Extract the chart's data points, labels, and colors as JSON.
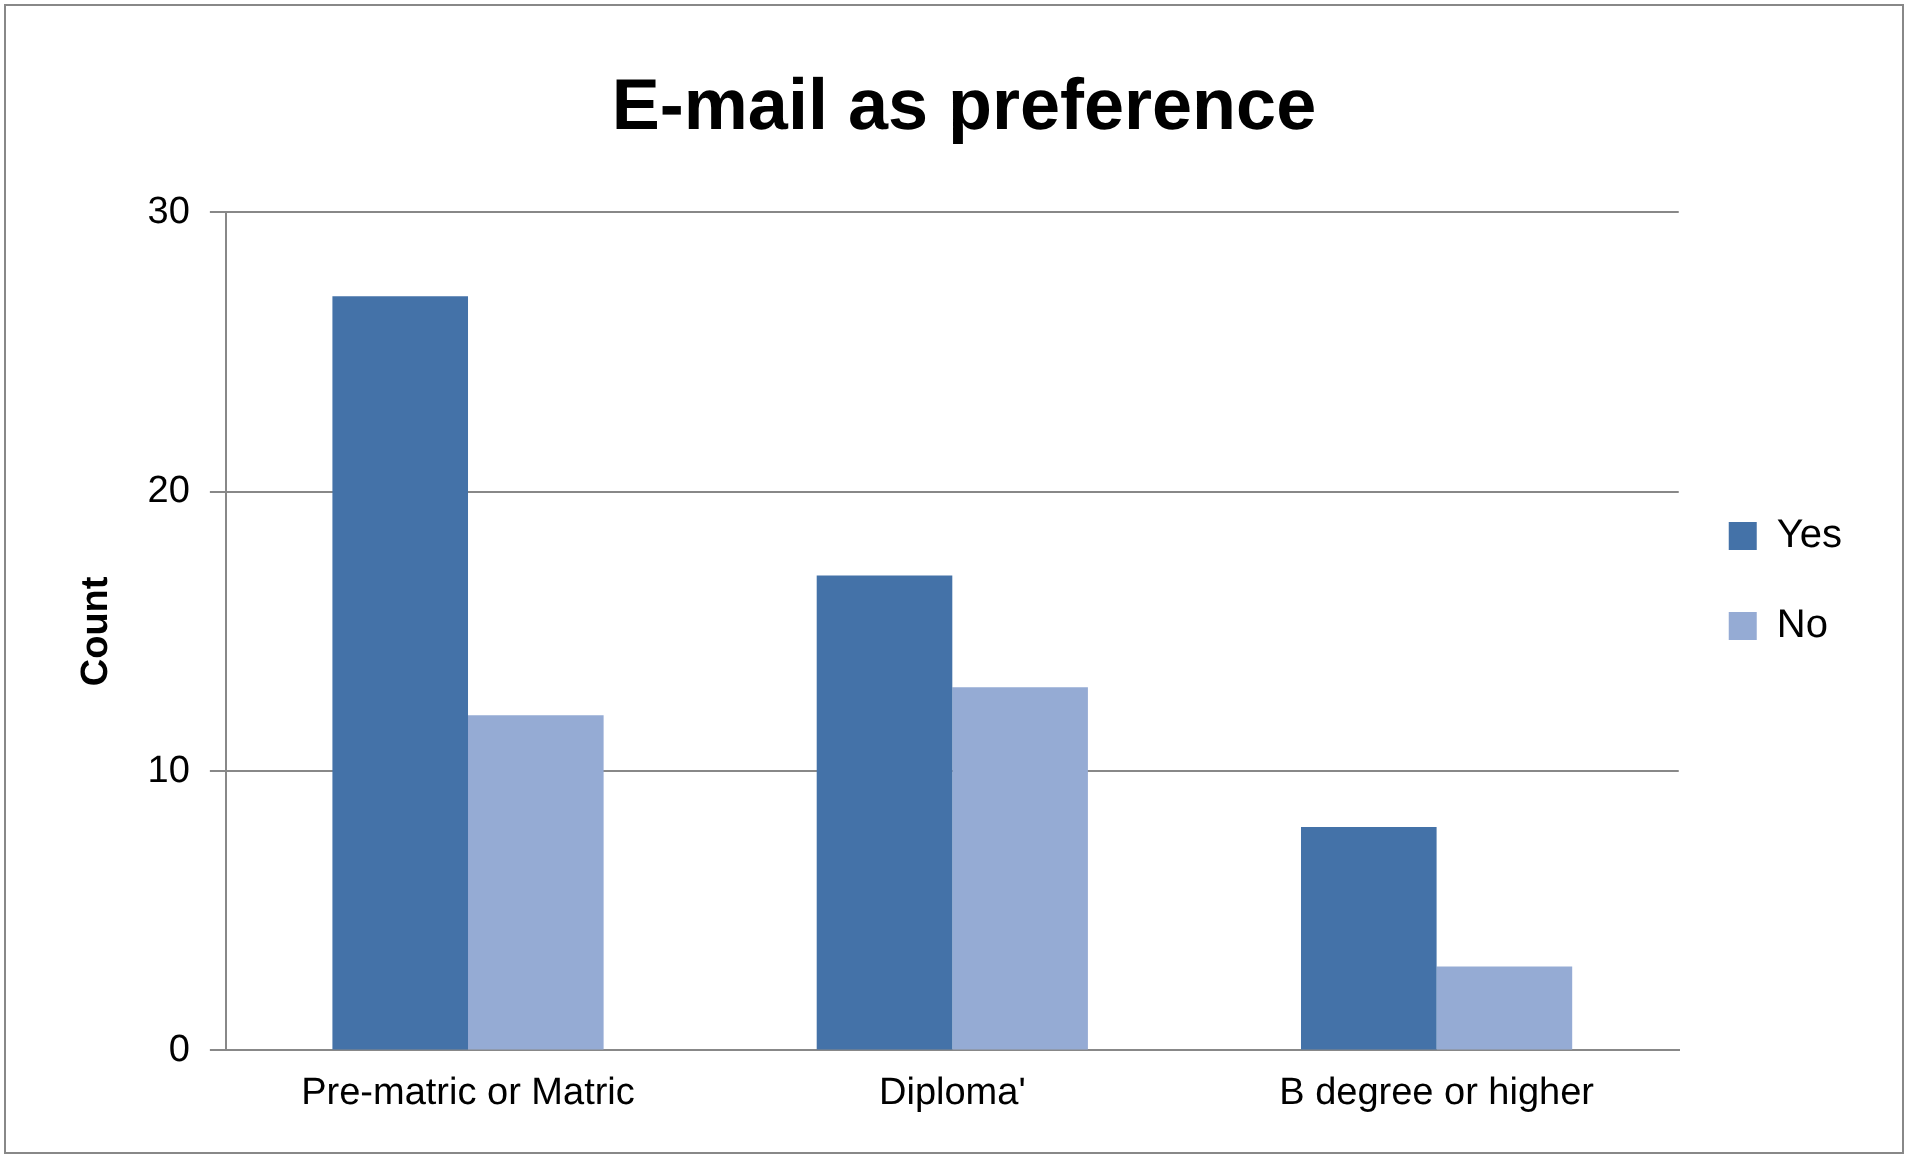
{
  "chart_data": {
    "type": "bar",
    "title": "E-mail as preference",
    "ylabel": "Count",
    "categories": [
      "Pre-matric or Matric",
      "Diploma'",
      "B degree or higher"
    ],
    "series": [
      {
        "name": "Yes",
        "color": "#4472a8",
        "values": [
          27,
          17,
          8
        ]
      },
      {
        "name": "No",
        "color": "#95abd4",
        "values": [
          12,
          13,
          3
        ]
      }
    ],
    "ylim": [
      0,
      30
    ],
    "yticks": [
      0,
      10,
      20,
      30
    ],
    "grid": "y",
    "legend": "right"
  }
}
